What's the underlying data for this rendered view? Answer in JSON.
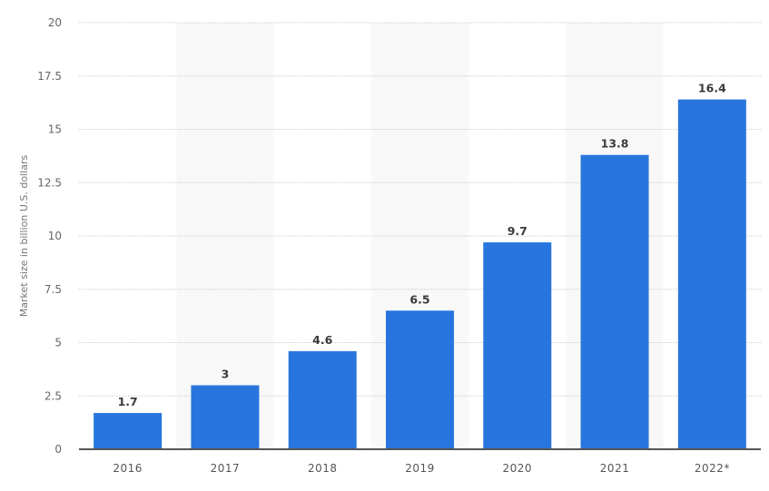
{
  "chart_data": {
    "type": "bar",
    "title": "",
    "xlabel": "",
    "ylabel": "Market size in billion U.S. dollars",
    "categories": [
      "2016",
      "2017",
      "2018",
      "2019",
      "2020",
      "2021",
      "2022*"
    ],
    "values": [
      1.7,
      3,
      4.6,
      6.5,
      9.7,
      13.8,
      16.4
    ],
    "value_labels": [
      "1.7",
      "3",
      "4.6",
      "6.5",
      "9.7",
      "13.8",
      "16.4"
    ],
    "ylim": [
      0,
      20
    ],
    "yticks": [
      0,
      2.5,
      5,
      7.5,
      10,
      12.5,
      15,
      17.5,
      20
    ],
    "ytick_labels": [
      "0",
      "2.5",
      "5",
      "7.5",
      "10",
      "12.5",
      "15",
      "17.5",
      "20"
    ],
    "grid": true,
    "legend": null,
    "colors": {
      "bar": "#2876dd",
      "band": "#f8f8f8",
      "grid": "#cccccc",
      "axis": "#555555"
    }
  }
}
